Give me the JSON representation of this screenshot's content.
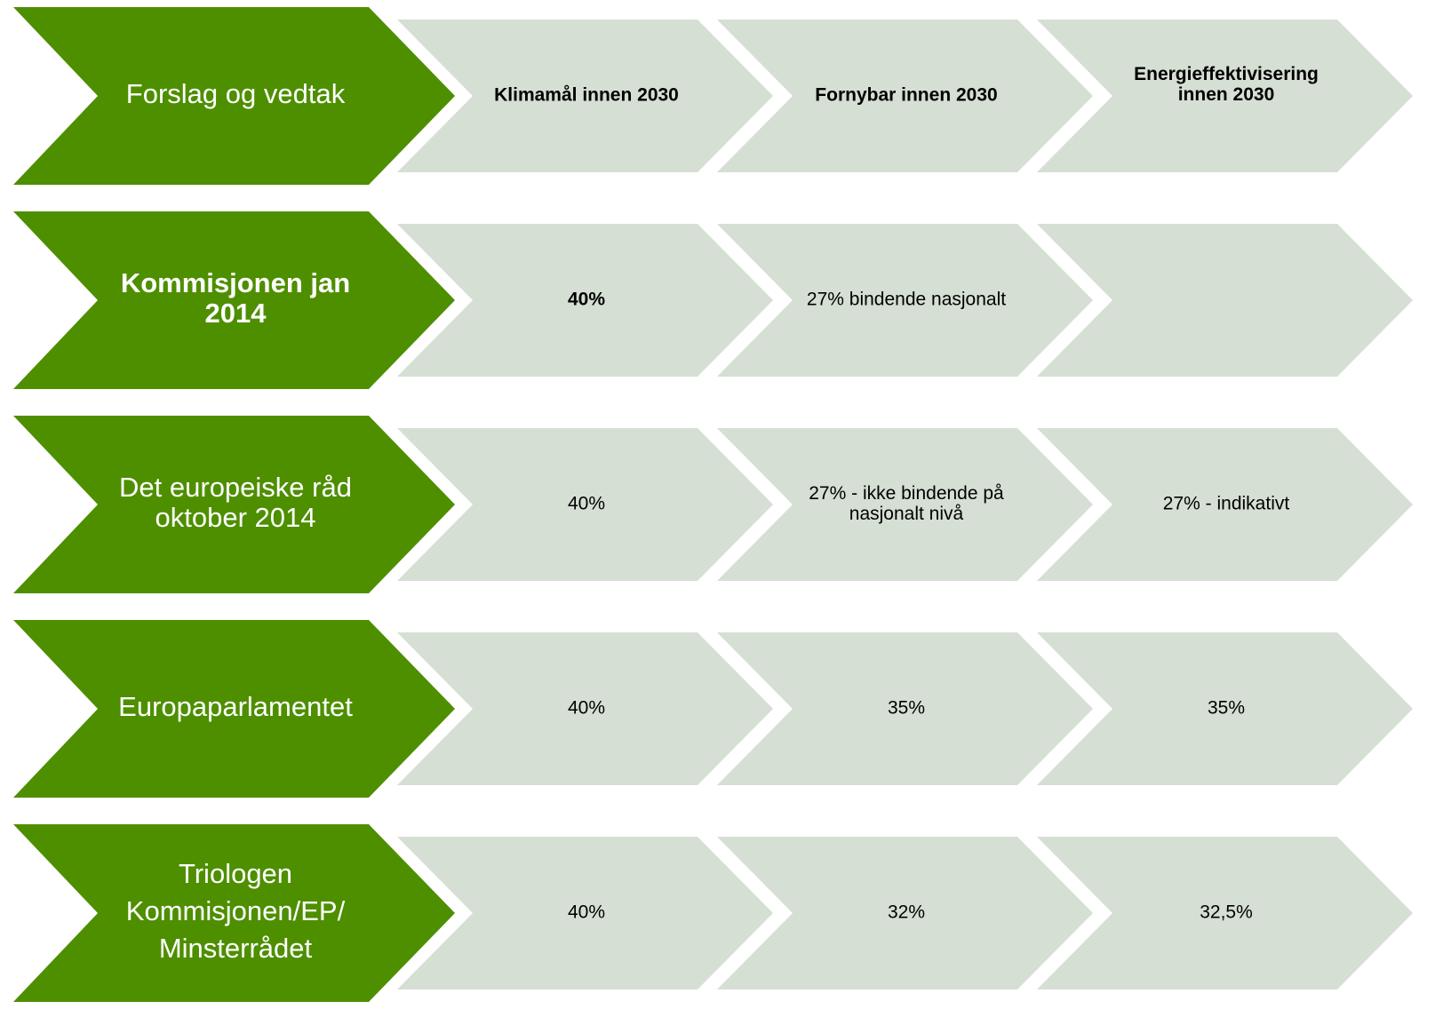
{
  "rows": [
    {
      "label": [
        "Forslag og vedtak"
      ],
      "cells": [
        [
          "Klimamål innen 2030"
        ],
        [
          "Fornybar innen 2030"
        ],
        [
          "Energieffektivisering",
          "innen 2030"
        ]
      ]
    },
    {
      "label": [
        "Kommisjonen jan",
        "2014"
      ],
      "cells": [
        [
          "40%"
        ],
        [
          "27% bindende nasjonalt"
        ],
        null
      ]
    },
    {
      "label": [
        "Det europeiske råd",
        "oktober 2014"
      ],
      "cells": [
        [
          "40%"
        ],
        [
          "27% - ikke bindende på",
          "nasjonalt nivå"
        ],
        [
          "27% - indikativt"
        ]
      ]
    },
    {
      "label": [
        "Europaparlamentet"
      ],
      "cells": [
        [
          "40%"
        ],
        [
          "35%"
        ],
        [
          "35%"
        ]
      ]
    },
    {
      "label": [
        "Triologen",
        "Kommisjonen/EP/",
        "Minsterrådet"
      ],
      "cells": [
        [
          "40%"
        ],
        [
          "32%"
        ],
        [
          "32,5%"
        ]
      ]
    }
  ]
}
